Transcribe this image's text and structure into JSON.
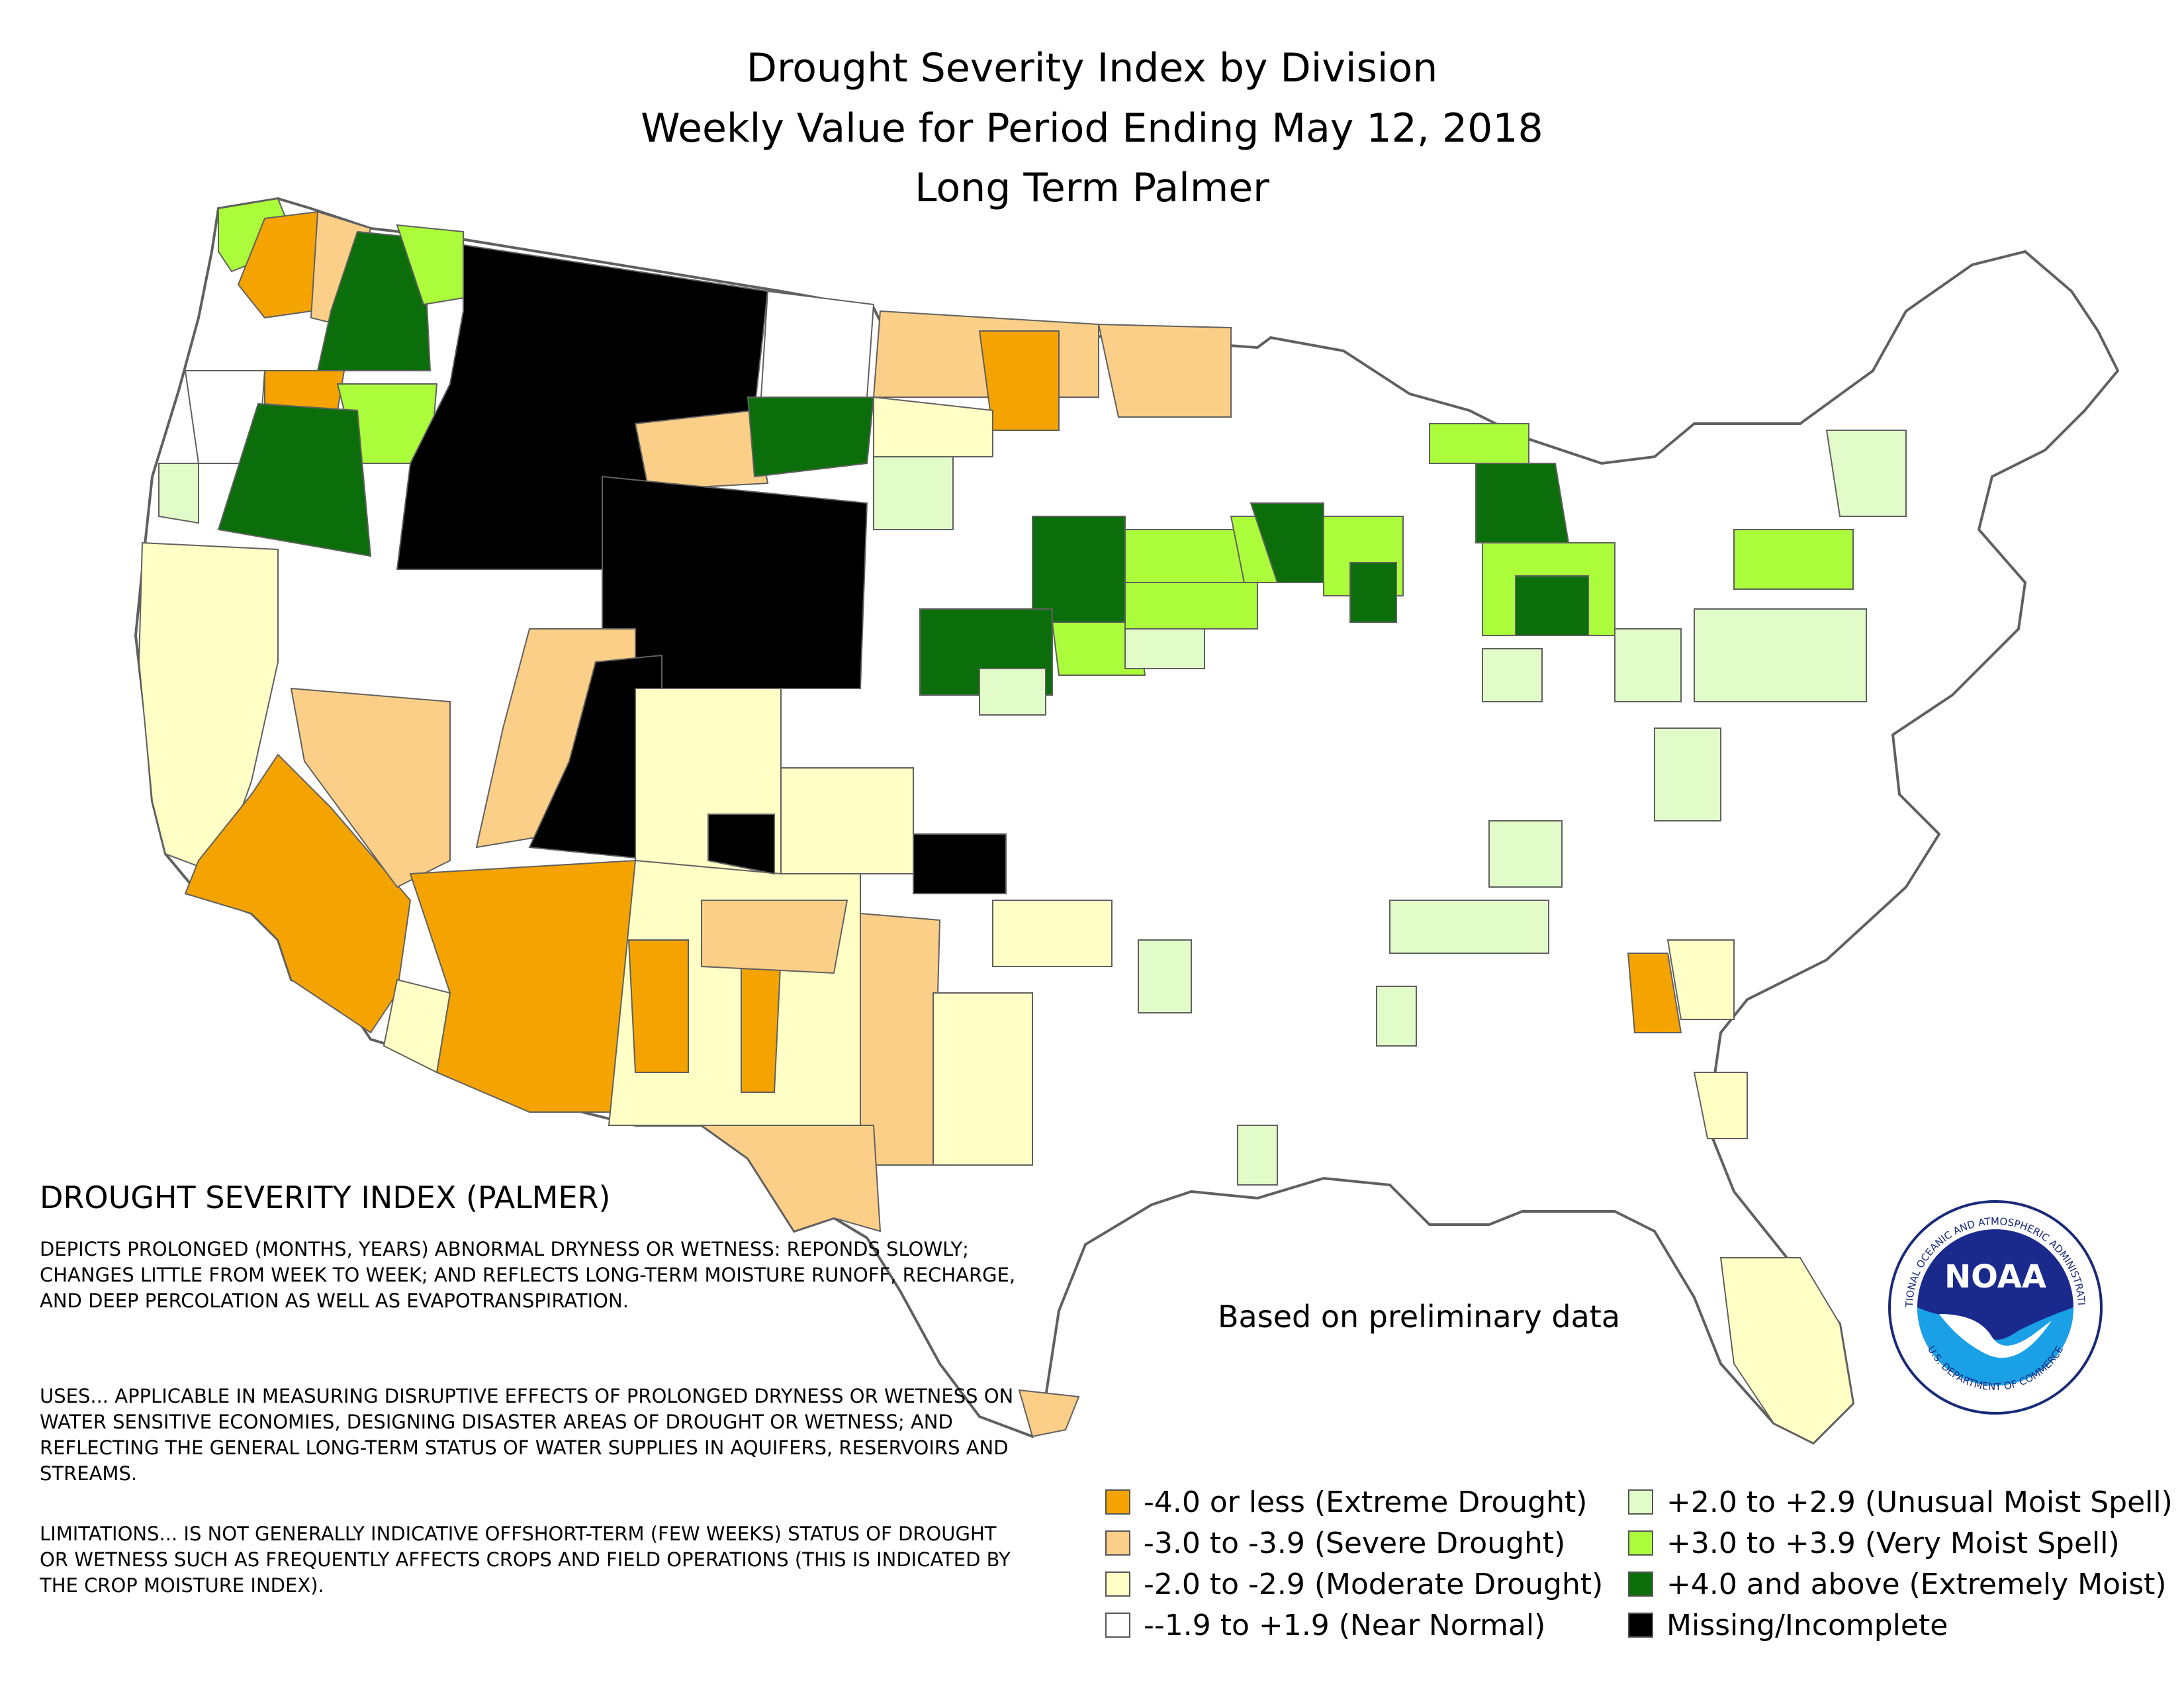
{
  "title_lines": [
    "Drought Severity Index by Division",
    "Weekly Value for Period Ending May 12, 2018",
    "Long Term Palmer"
  ],
  "info": {
    "heading": "DROUGHT SEVERITY INDEX (PALMER)",
    "para1": "DEPICTS PROLONGED (MONTHS, YEARS) ABNORMAL DRYNESS OR WETNESS: REPONDS SLOWLY; CHANGES LITTLE FROM WEEK TO WEEK; AND REFLECTS LONG-TERM MOISTURE RUNOFF, RECHARGE, AND DEEP PERCOLATION AS WELL AS EVAPOTRANSPIRATION.",
    "para2": "USES... APPLICABLE IN MEASURING DISRUPTIVE EFFECTS OF PROLONGED DRYNESS OR WETNESS ON WATER SENSITIVE ECONOMIES, DESIGNING DISASTER AREAS OF DROUGHT OR WETNESS; AND REFLECTING THE GENERAL LONG-TERM STATUS OF WATER SUPPLIES IN AQUIFERS, RESERVOIRS AND STREAMS.",
    "para3": "LIMITATIONS... IS NOT GENERALLY INDICATIVE OFFSHORT-TERM (FEW WEEKS) STATUS OF DROUGHT OR WETNESS SUCH AS FREQUENTLY AFFECTS CROPS AND FIELD OPERATIONS (THIS IS INDICATED BY THE CROP MOISTURE INDEX)."
  },
  "preliminary_note": "Based on preliminary data",
  "legend": {
    "left": [
      {
        "label": "-4.0 or less (Extreme Drought)",
        "color": "#f5a300"
      },
      {
        "label": "-3.0 to -3.9 (Severe Drought)",
        "color": "#fccf88"
      },
      {
        "label": "-2.0 to -2.9 (Moderate Drought)",
        "color": "#ffffc6"
      },
      {
        "label": "--1.9 to +1.9 (Near Normal)",
        "color": "#ffffff"
      }
    ],
    "right": [
      {
        "label": "+2.0 to +2.9 (Unusual Moist Spell)",
        "color": "#e2fcc9"
      },
      {
        "label": "+3.0 to +3.9 (Very Moist Spell)",
        "color": "#abfc3a"
      },
      {
        "label": "+4.0 and above (Extremely Moist)",
        "color": "#0b6e0b"
      },
      {
        "label": "Missing/Incomplete",
        "color": "#000000"
      }
    ]
  },
  "logo": {
    "ring_text": "NATIONAL OCEANIC AND ATMOSPHERIC ADMINISTRATION",
    "ring_text_bottom": "U.S. DEPARTMENT OF COMMERCE",
    "center_text": "NOAA"
  },
  "map": {
    "outline_color": "#606060",
    "interior_color": "#ffffff"
  }
}
